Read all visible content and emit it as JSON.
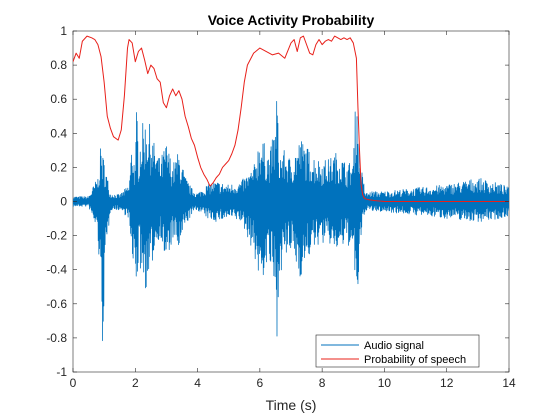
{
  "chart_data": {
    "type": "line",
    "title": "Voice Activity Probability",
    "xlabel": "Time (s)",
    "ylabel": "",
    "xlim": [
      0,
      14
    ],
    "ylim": [
      -1,
      1
    ],
    "xticks": [
      "0",
      "2",
      "4",
      "6",
      "8",
      "10",
      "12",
      "14"
    ],
    "yticks": [
      "-1",
      "-0.8",
      "-0.6",
      "-0.4",
      "-0.2",
      "0",
      "0.2",
      "0.4",
      "0.6",
      "0.8",
      "1"
    ],
    "grid": false,
    "legend_position": "bottom-right",
    "series": [
      {
        "name": "Audio signal",
        "color": "#0072BD",
        "style": "dense waveform",
        "envelope": {
          "x": [
            0,
            0.5,
            0.8,
            0.9,
            0.95,
            1.0,
            1.1,
            1.2,
            1.5,
            1.8,
            1.9,
            2.0,
            2.05,
            2.1,
            2.2,
            2.4,
            2.6,
            2.8,
            3.0,
            3.2,
            3.4,
            3.6,
            3.8,
            4.0,
            4.3,
            4.6,
            5.0,
            5.4,
            5.8,
            6.0,
            6.3,
            6.5,
            6.55,
            6.6,
            6.8,
            7.0,
            7.3,
            7.6,
            7.9,
            8.2,
            8.5,
            8.8,
            9.0,
            9.1,
            9.2,
            9.3,
            9.4,
            9.6,
            10.0,
            11.0,
            12.0,
            13.0,
            13.8,
            14.0
          ],
          "upper": [
            0.03,
            0.03,
            0.15,
            0.35,
            0.28,
            0.25,
            0.15,
            0.05,
            0.04,
            0.1,
            0.38,
            0.2,
            0.62,
            0.3,
            0.45,
            0.5,
            0.35,
            0.25,
            0.35,
            0.22,
            0.3,
            0.15,
            0.08,
            0.05,
            0.1,
            0.12,
            0.1,
            0.12,
            0.2,
            0.4,
            0.28,
            0.45,
            0.75,
            0.3,
            0.3,
            0.25,
            0.38,
            0.3,
            0.25,
            0.25,
            0.3,
            0.22,
            0.25,
            0.72,
            0.28,
            0.15,
            0.05,
            0.06,
            0.06,
            0.08,
            0.1,
            0.14,
            0.1,
            0.08
          ],
          "lower": [
            -0.03,
            -0.03,
            -0.2,
            -0.7,
            -0.86,
            -0.6,
            -0.25,
            -0.05,
            -0.05,
            -0.1,
            -0.45,
            -0.3,
            -0.72,
            -0.3,
            -0.45,
            -0.55,
            -0.3,
            -0.2,
            -0.4,
            -0.22,
            -0.3,
            -0.15,
            -0.08,
            -0.05,
            -0.1,
            -0.12,
            -0.1,
            -0.12,
            -0.3,
            -0.5,
            -0.35,
            -0.6,
            -1.0,
            -0.45,
            -0.35,
            -0.3,
            -0.45,
            -0.32,
            -0.25,
            -0.25,
            -0.3,
            -0.25,
            -0.3,
            -0.72,
            -0.35,
            -0.15,
            -0.05,
            -0.06,
            -0.06,
            -0.08,
            -0.1,
            -0.12,
            -0.1,
            -0.08
          ]
        }
      },
      {
        "name": "Probability of speech",
        "color": "#E8201A",
        "x": [
          0,
          0.1,
          0.2,
          0.3,
          0.45,
          0.6,
          0.7,
          0.8,
          0.9,
          1.0,
          1.1,
          1.2,
          1.3,
          1.45,
          1.55,
          1.65,
          1.75,
          1.8,
          1.9,
          2.0,
          2.1,
          2.2,
          2.3,
          2.4,
          2.5,
          2.6,
          2.7,
          2.8,
          2.9,
          3.0,
          3.1,
          3.2,
          3.3,
          3.4,
          3.5,
          3.6,
          3.7,
          3.8,
          3.9,
          4.0,
          4.1,
          4.2,
          4.3,
          4.4,
          4.5,
          4.6,
          4.7,
          4.8,
          4.9,
          5.0,
          5.1,
          5.2,
          5.3,
          5.4,
          5.5,
          5.6,
          5.8,
          6.0,
          6.2,
          6.4,
          6.6,
          6.8,
          7.0,
          7.1,
          7.2,
          7.3,
          7.4,
          7.5,
          7.6,
          7.7,
          7.8,
          7.9,
          8.0,
          8.1,
          8.2,
          8.3,
          8.4,
          8.5,
          8.6,
          8.7,
          8.8,
          8.9,
          9.0,
          9.1,
          9.15,
          9.2,
          9.25,
          9.3,
          9.35,
          9.4,
          9.5,
          9.7,
          10,
          11,
          12,
          13,
          14
        ],
        "y": [
          0.82,
          0.87,
          0.84,
          0.94,
          0.97,
          0.96,
          0.95,
          0.92,
          0.85,
          0.7,
          0.5,
          0.43,
          0.38,
          0.36,
          0.42,
          0.62,
          0.9,
          0.95,
          0.93,
          0.82,
          0.88,
          0.9,
          0.83,
          0.75,
          0.8,
          0.78,
          0.72,
          0.7,
          0.58,
          0.55,
          0.62,
          0.66,
          0.62,
          0.65,
          0.6,
          0.5,
          0.44,
          0.37,
          0.33,
          0.26,
          0.2,
          0.16,
          0.13,
          0.09,
          0.11,
          0.14,
          0.16,
          0.2,
          0.22,
          0.24,
          0.28,
          0.33,
          0.42,
          0.55,
          0.7,
          0.8,
          0.87,
          0.9,
          0.88,
          0.86,
          0.87,
          0.84,
          0.93,
          0.95,
          0.88,
          0.96,
          0.97,
          0.92,
          0.87,
          0.86,
          0.92,
          0.95,
          0.92,
          0.94,
          0.95,
          0.94,
          0.97,
          0.96,
          0.95,
          0.96,
          0.95,
          0.96,
          0.93,
          0.84,
          0.55,
          0.3,
          0.1,
          0.04,
          0.02,
          0.015,
          0.01,
          0.005,
          0.0,
          0.0,
          0.0,
          0.0,
          0.0
        ]
      }
    ]
  }
}
